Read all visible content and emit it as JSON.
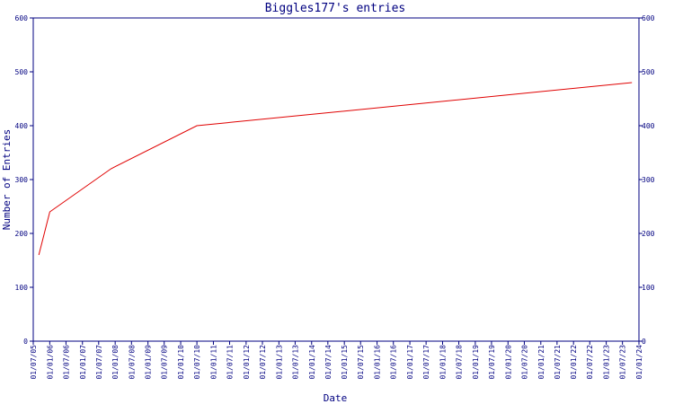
{
  "chart_data": {
    "type": "line",
    "title": "Biggles177's entries",
    "xlabel": "Date",
    "ylabel": "Number of Entries",
    "ylim": [
      0,
      600
    ],
    "yticks": [
      0,
      100,
      200,
      300,
      400,
      500,
      600
    ],
    "xticks": [
      "01/07/05",
      "01/01/06",
      "01/07/06",
      "01/01/07",
      "01/07/07",
      "01/01/08",
      "01/07/08",
      "01/01/09",
      "01/07/09",
      "01/01/10",
      "01/07/10",
      "01/01/11",
      "01/07/11",
      "01/01/12",
      "01/07/12",
      "01/01/13",
      "01/07/13",
      "01/01/14",
      "01/07/14",
      "01/01/15",
      "01/07/15",
      "01/01/16",
      "01/07/16",
      "01/01/17",
      "01/07/17",
      "01/01/18",
      "01/07/18",
      "01/01/19",
      "01/07/19",
      "01/01/20",
      "01/07/20",
      "01/01/21",
      "01/07/21",
      "01/01/22",
      "01/07/22",
      "01/01/23",
      "01/07/23",
      "01/01/24"
    ],
    "grid": false,
    "right_axis": true,
    "series": [
      {
        "color": "#e00000",
        "points": [
          {
            "x": "2005-09-01",
            "y": 160
          },
          {
            "x": "2006-01-01",
            "y": 240
          },
          {
            "x": "2007-11-15",
            "y": 320
          },
          {
            "x": "2010-07-01",
            "y": 400
          },
          {
            "x": "2023-10-15",
            "y": 480
          }
        ]
      }
    ]
  }
}
